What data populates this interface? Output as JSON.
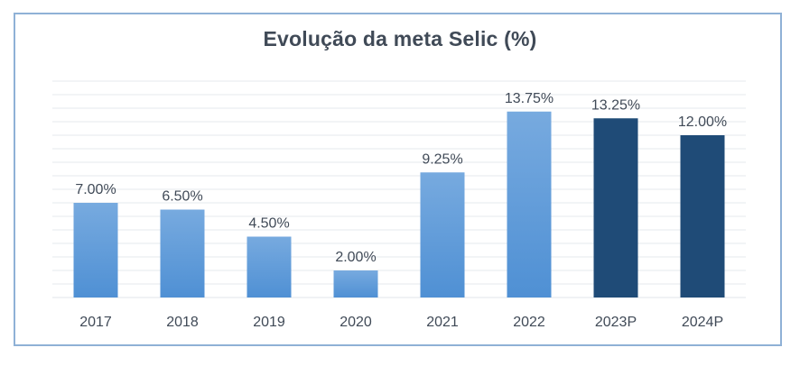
{
  "chart_data": {
    "type": "bar",
    "title": "Evolução da meta Selic (%)",
    "categories": [
      "2017",
      "2018",
      "2019",
      "2020",
      "2021",
      "2022",
      "2023P",
      "2024P"
    ],
    "values": [
      7.0,
      6.5,
      4.5,
      2.0,
      9.25,
      13.75,
      13.25,
      12.0
    ],
    "value_labels": [
      "7.00%",
      "6.50%",
      "4.50%",
      "2.00%",
      "9.25%",
      "13.75%",
      "13.25%",
      "12.00%"
    ],
    "ylim": [
      0,
      16
    ],
    "grid": true,
    "legend": "none",
    "colors": {
      "actual_bar_top": "#77aadf",
      "actual_bar_bottom": "#4f90d4",
      "projected_bar": "#1f4b77",
      "grid": "#e6e9ee",
      "border": "#8fb1d6",
      "text": "#404a57"
    },
    "projected": [
      false,
      false,
      false,
      false,
      false,
      false,
      true,
      true
    ]
  }
}
